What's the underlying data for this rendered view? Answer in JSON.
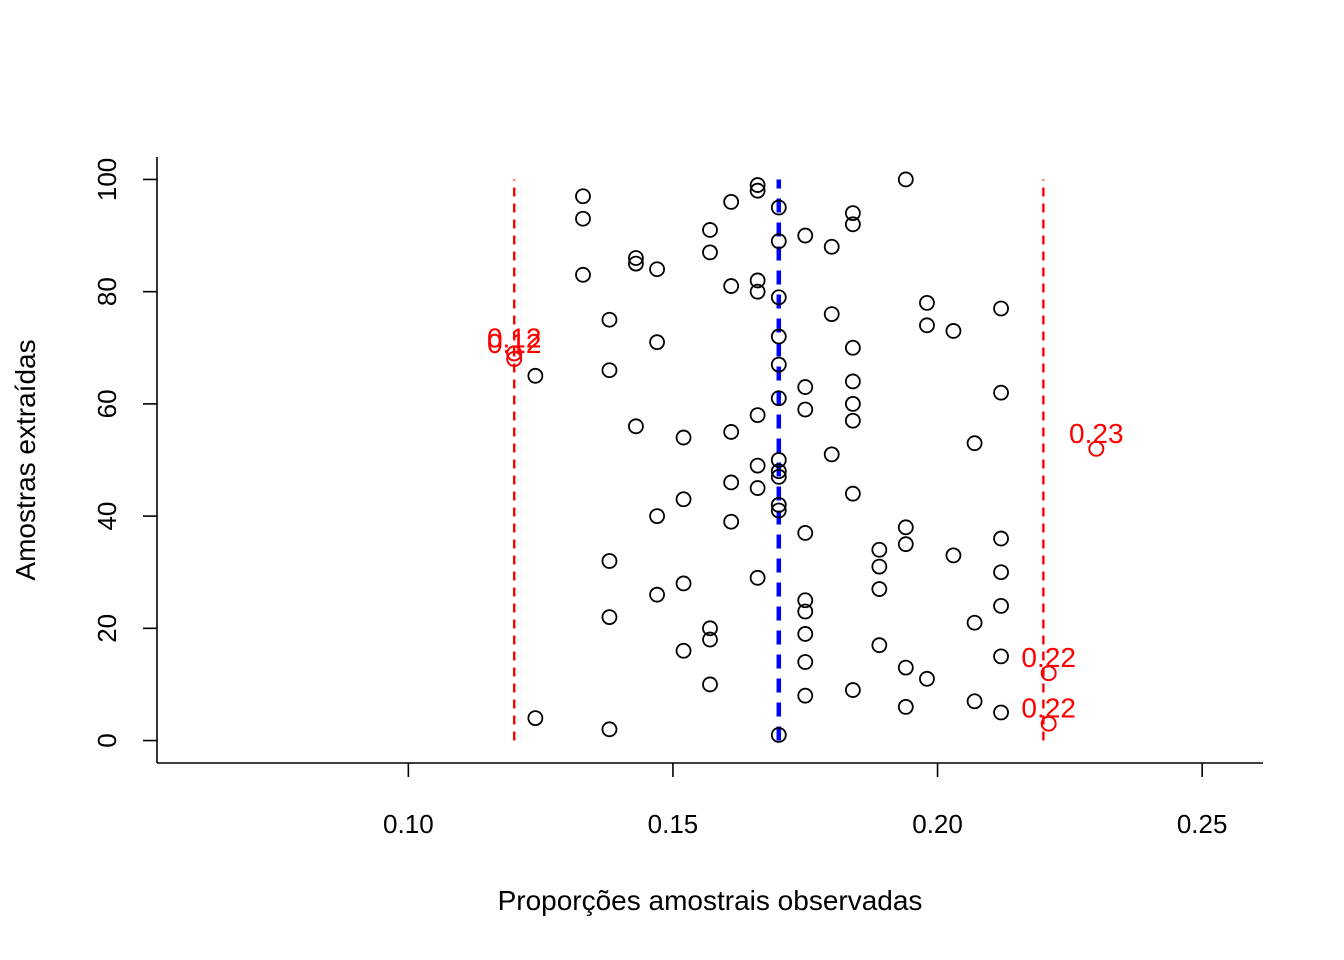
{
  "chart_data": {
    "type": "scatter",
    "xlabel": "Proporções amostrais observadas",
    "ylabel": "Amostras extraídas",
    "xlim": [
      0.0525,
      0.2615
    ],
    "ylim": [
      -4,
      104
    ],
    "x_ticks": [
      0.1,
      0.15,
      0.2,
      0.25
    ],
    "x_tick_labels": [
      "0.10",
      "0.15",
      "0.20",
      "0.25"
    ],
    "y_ticks": [
      0,
      20,
      40,
      60,
      80,
      100
    ],
    "y_tick_labels": [
      "0",
      "20",
      "40",
      "60",
      "80",
      "100"
    ],
    "grid": false,
    "colors": {
      "points": "#000000",
      "highlight": "#ff0000",
      "center_line": "#0000ff",
      "limit_lines": "#ff0000"
    },
    "reference_lines": [
      {
        "x": 0.12,
        "style": "dashed",
        "color": "#ff0000",
        "y_range": [
          0,
          100
        ]
      },
      {
        "x": 0.17,
        "style": "dashed",
        "color": "#0000ff",
        "y_range": [
          0,
          100
        ],
        "thick": true
      },
      {
        "x": 0.22,
        "style": "dashed",
        "color": "#ff0000",
        "y_range": [
          0,
          100
        ]
      }
    ],
    "points": [
      [
        0.17,
        1
      ],
      [
        0.138,
        2
      ],
      [
        0.221,
        3
      ],
      [
        0.124,
        4
      ],
      [
        0.212,
        5
      ],
      [
        0.194,
        6
      ],
      [
        0.207,
        7
      ],
      [
        0.175,
        8
      ],
      [
        0.184,
        9
      ],
      [
        0.157,
        10
      ],
      [
        0.198,
        11
      ],
      [
        0.221,
        12
      ],
      [
        0.194,
        13
      ],
      [
        0.175,
        14
      ],
      [
        0.212,
        15
      ],
      [
        0.152,
        16
      ],
      [
        0.189,
        17
      ],
      [
        0.157,
        18
      ],
      [
        0.175,
        19
      ],
      [
        0.157,
        20
      ],
      [
        0.207,
        21
      ],
      [
        0.138,
        22
      ],
      [
        0.175,
        23
      ],
      [
        0.212,
        24
      ],
      [
        0.175,
        25
      ],
      [
        0.147,
        26
      ],
      [
        0.189,
        27
      ],
      [
        0.152,
        28
      ],
      [
        0.166,
        29
      ],
      [
        0.212,
        30
      ],
      [
        0.189,
        31
      ],
      [
        0.138,
        32
      ],
      [
        0.203,
        33
      ],
      [
        0.189,
        34
      ],
      [
        0.194,
        35
      ],
      [
        0.212,
        36
      ],
      [
        0.175,
        37
      ],
      [
        0.194,
        38
      ],
      [
        0.161,
        39
      ],
      [
        0.147,
        40
      ],
      [
        0.17,
        41
      ],
      [
        0.17,
        42
      ],
      [
        0.152,
        43
      ],
      [
        0.184,
        44
      ],
      [
        0.166,
        45
      ],
      [
        0.161,
        46
      ],
      [
        0.17,
        47
      ],
      [
        0.17,
        48
      ],
      [
        0.166,
        49
      ],
      [
        0.17,
        50
      ],
      [
        0.18,
        51
      ],
      [
        0.23,
        52
      ],
      [
        0.207,
        53
      ],
      [
        0.152,
        54
      ],
      [
        0.161,
        55
      ],
      [
        0.143,
        56
      ],
      [
        0.184,
        57
      ],
      [
        0.166,
        58
      ],
      [
        0.175,
        59
      ],
      [
        0.184,
        60
      ],
      [
        0.17,
        61
      ],
      [
        0.212,
        62
      ],
      [
        0.175,
        63
      ],
      [
        0.184,
        64
      ],
      [
        0.124,
        65
      ],
      [
        0.138,
        66
      ],
      [
        0.17,
        67
      ],
      [
        0.12,
        68
      ],
      [
        0.12,
        69
      ],
      [
        0.184,
        70
      ],
      [
        0.147,
        71
      ],
      [
        0.17,
        72
      ],
      [
        0.203,
        73
      ],
      [
        0.198,
        74
      ],
      [
        0.138,
        75
      ],
      [
        0.18,
        76
      ],
      [
        0.212,
        77
      ],
      [
        0.198,
        78
      ],
      [
        0.17,
        79
      ],
      [
        0.166,
        80
      ],
      [
        0.161,
        81
      ],
      [
        0.166,
        82
      ],
      [
        0.133,
        83
      ],
      [
        0.147,
        84
      ],
      [
        0.143,
        85
      ],
      [
        0.143,
        86
      ],
      [
        0.157,
        87
      ],
      [
        0.18,
        88
      ],
      [
        0.17,
        89
      ],
      [
        0.175,
        90
      ],
      [
        0.157,
        91
      ],
      [
        0.184,
        92
      ],
      [
        0.133,
        93
      ],
      [
        0.184,
        94
      ],
      [
        0.17,
        95
      ],
      [
        0.161,
        96
      ],
      [
        0.133,
        97
      ],
      [
        0.166,
        98
      ],
      [
        0.166,
        99
      ],
      [
        0.194,
        100
      ]
    ],
    "highlighted_points": [
      {
        "x": 0.12,
        "y": 68,
        "label": "0.12"
      },
      {
        "x": 0.12,
        "y": 69,
        "label": "0.12"
      },
      {
        "x": 0.23,
        "y": 52,
        "label": "0.23"
      },
      {
        "x": 0.221,
        "y": 12,
        "label": "0.22"
      },
      {
        "x": 0.221,
        "y": 3,
        "label": "0.22"
      }
    ]
  }
}
